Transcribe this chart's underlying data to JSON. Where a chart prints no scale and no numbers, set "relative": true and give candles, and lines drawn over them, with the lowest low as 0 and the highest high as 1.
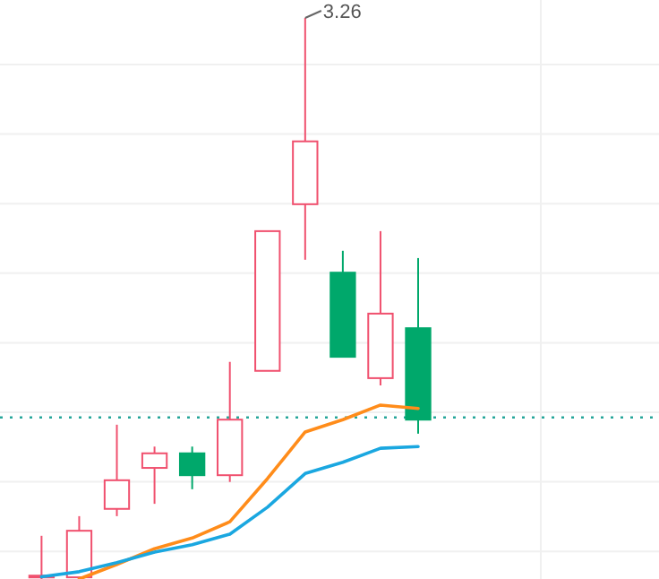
{
  "chart_data": {
    "type": "candlestick",
    "relative": true,
    "grid": true,
    "categories": [
      null,
      null,
      null,
      null,
      null,
      null,
      null,
      null,
      null,
      null,
      null
    ],
    "ohlc": [
      [
        0.003,
        0.077,
        0,
        0.006
      ],
      [
        0.003,
        0.112,
        0,
        0.086
      ],
      [
        0.125,
        0.275,
        0.112,
        0.176
      ],
      [
        0.198,
        0.236,
        0.134,
        0.224
      ],
      [
        0.224,
        0.236,
        0.16,
        0.185
      ],
      [
        0.185,
        0.387,
        0.173,
        0.284
      ],
      [
        0.371,
        0.62,
        0.371,
        0.62
      ],
      [
        0.668,
        1,
        0.569,
        0.78
      ],
      [
        0.546,
        0.585,
        0.396,
        0.396
      ],
      [
        0.358,
        0.62,
        0.345,
        0.473
      ],
      [
        0.447,
        0.572,
        0.259,
        0.284
      ]
    ],
    "colors": [
      "#f0506e",
      "#f0506e",
      "#f0506e",
      "#f0506e",
      "#00a86b",
      "#f0506e",
      "#f0506e",
      "#f0506e",
      "#00a86b",
      "#f0506e",
      "#00a86b"
    ],
    "series": [
      {
        "type": "line",
        "color": "#ff8c1a",
        "values": [
          null,
          0,
          0.026,
          0.054,
          0.073,
          0.102,
          0.179,
          0.262,
          0.284,
          0.31,
          0.304
        ]
      },
      {
        "type": "line",
        "color": "#1aa7e0",
        "values": [
          0.004,
          0.013,
          0.029,
          0.048,
          0.061,
          0.08,
          0.128,
          0.188,
          0.208,
          0.233,
          0.236
        ]
      }
    ],
    "ref_lines": [
      {
        "axis": "y",
        "value": 0.288,
        "color": "#26a69a",
        "line_style": "dotted"
      }
    ],
    "annotations": [
      "3.26"
    ]
  }
}
